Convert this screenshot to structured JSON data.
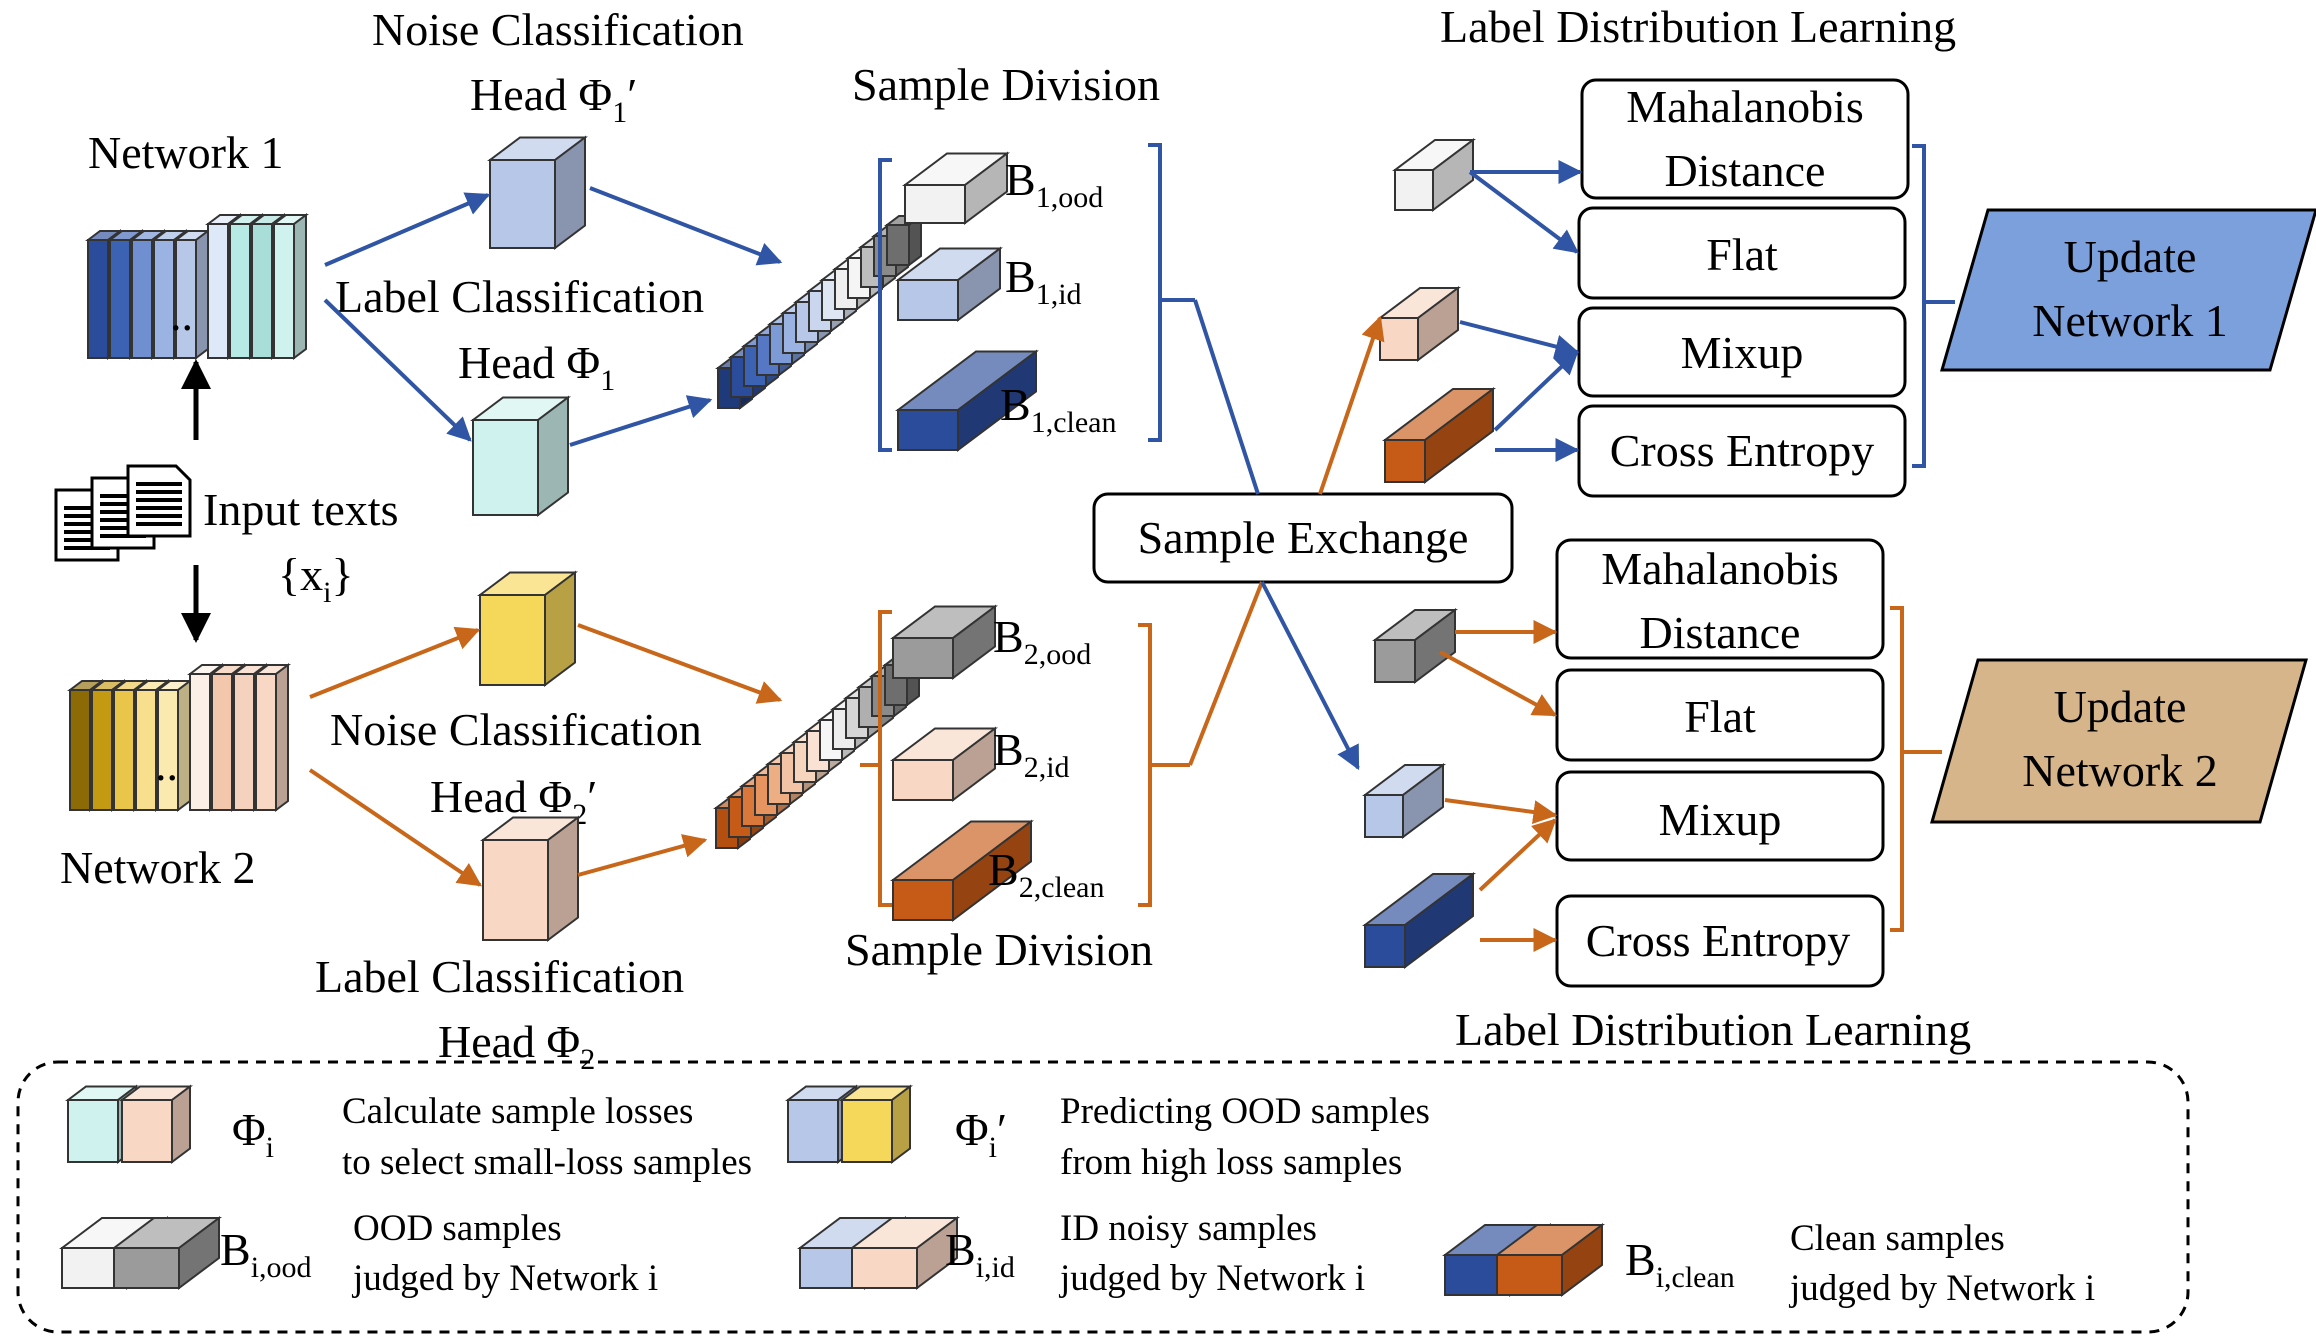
{
  "colors": {
    "blue_arrow": "#2F55A4",
    "orange_arrow": "#C8671A",
    "light_blue": "#B6C7E8",
    "dark_blue": "#2B4C9A",
    "light_cyan": "#CFF2EE",
    "yellow": "#F5D75A",
    "peach": "#F8D7C4",
    "orange": "#C65A17",
    "gray": "#9B9B9B",
    "white_block": "#F2F2F2",
    "update1_fill": "#7CA0DC",
    "update2_fill": "#D7B58A"
  },
  "top": {
    "network_label": "Network 1",
    "noise_head_label_l1": "Noise Classification",
    "noise_head_label_l2": "Head Φ",
    "noise_head_sub": "1",
    "label_head_label_l1": "Label Classification",
    "label_head_label_l2": "Head Φ",
    "label_head_sub": "1",
    "division_title": "Sample Division",
    "b_ood": "B",
    "b_ood_sub": "1,ood",
    "b_id": "B",
    "b_id_sub": "1,id",
    "b_clean": "B",
    "b_clean_sub": "1,clean",
    "ldl_title": "Label Distribution Learning",
    "losses": [
      "Mahalanobis",
      "Distance",
      "Flat",
      "Mixup",
      "Cross Entropy"
    ],
    "update_l1": "Update",
    "update_l2": "Network 1"
  },
  "bottom": {
    "network_label": "Network 2",
    "noise_head_label_l1": "Noise Classification",
    "noise_head_label_l2": "Head Φ",
    "noise_head_sub": "2",
    "label_head_label_l1": "Label Classification",
    "label_head_label_l2": "Head Φ",
    "label_head_sub": "2",
    "division_title": "Sample Division",
    "b_ood": "B",
    "b_ood_sub": "2,ood",
    "b_id": "B",
    "b_id_sub": "2,id",
    "b_clean": "B",
    "b_clean_sub": "2,clean",
    "ldl_title": "Label Distribution Learning",
    "losses": [
      "Mahalanobis",
      "Distance",
      "Flat",
      "Mixup",
      "Cross Entropy"
    ],
    "update_l1": "Update",
    "update_l2": "Network 2"
  },
  "center": {
    "input_label": "Input texts",
    "input_set": "{x",
    "input_set_sub": "i",
    "input_set_close": "}",
    "exchange_label": "Sample Exchange",
    "ellipsis": ".."
  },
  "legend": {
    "phi": "Φ",
    "phi_sub": "i",
    "phi_desc_l1": "Calculate sample losses",
    "phi_desc_l2": "to select small-loss samples",
    "phi_prime": "Φ",
    "phi_prime_sub": "i",
    "phi_prime_desc_l1": "Predicting OOD samples",
    "phi_prime_desc_l2": "from high loss samples",
    "b_ood": "B",
    "b_ood_sub": "i,ood",
    "b_ood_desc_l1": "OOD samples",
    "b_ood_desc_l2": "judged by Network i",
    "b_id": "B",
    "b_id_sub": "i,id",
    "b_id_desc_l1": "ID noisy samples",
    "b_id_desc_l2": "judged by Network i",
    "b_clean": "B",
    "b_clean_sub": "i,clean",
    "b_clean_desc_l1": "Clean samples",
    "b_clean_desc_l2": "judged by Network i"
  }
}
